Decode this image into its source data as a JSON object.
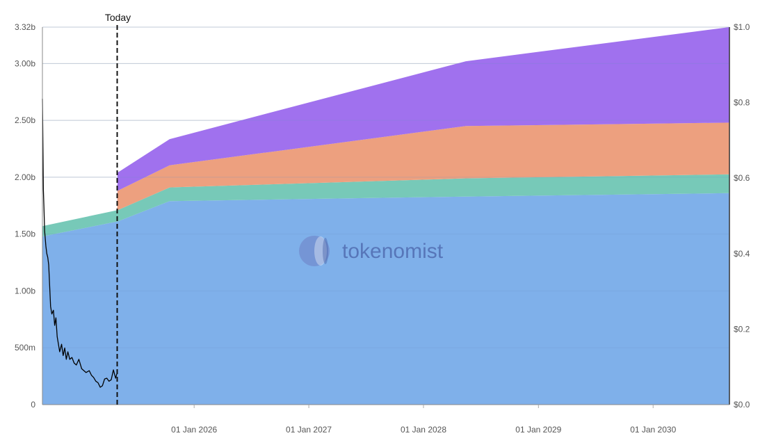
{
  "chart_data": {
    "type": "area",
    "stacked": true,
    "watermark": "tokenomist",
    "today_label": "Today",
    "today_date": "2025-05-01",
    "colors": {
      "blue": "#7fb0ea",
      "green": "#77c9b8",
      "orange": "#eda07f",
      "purple": "#a071ee",
      "price": "#000000"
    },
    "x_range": [
      "2024-09-05",
      "2030-09-01"
    ],
    "x_ticks": [
      {
        "date": "2026-01-01",
        "label": "01 Jan 2026"
      },
      {
        "date": "2027-01-01",
        "label": "01 Jan 2027"
      },
      {
        "date": "2028-01-01",
        "label": "01 Jan 2028"
      },
      {
        "date": "2029-01-01",
        "label": "01 Jan 2029"
      },
      {
        "date": "2030-01-01",
        "label": "01 Jan 2030"
      }
    ],
    "y_left": {
      "ylim": [
        0,
        3320000000
      ],
      "ticks": [
        {
          "value": 0,
          "label": "0"
        },
        {
          "value": 500000000,
          "label": "500m"
        },
        {
          "value": 1000000000,
          "label": "1.00b"
        },
        {
          "value": 1500000000,
          "label": "1.50b"
        },
        {
          "value": 2000000000,
          "label": "2.00b"
        },
        {
          "value": 2500000000,
          "label": "2.50b"
        },
        {
          "value": 3000000000,
          "label": "3.00b"
        },
        {
          "value": 3320000000,
          "label": "3.32b"
        }
      ]
    },
    "y_right": {
      "ylim": [
        0,
        1.0
      ],
      "ticks": [
        {
          "value": 0,
          "label": "$0.0"
        },
        {
          "value": 0.2,
          "label": "$0.2"
        },
        {
          "value": 0.4,
          "label": "$0.4"
        },
        {
          "value": 0.6,
          "label": "$0.6"
        },
        {
          "value": 0.8,
          "label": "$0.8"
        },
        {
          "value": 1.0,
          "label": "$1.0"
        }
      ]
    },
    "grid": true,
    "stack_x": [
      "2024-09-05",
      "2025-05-01",
      "2025-05-02",
      "2025-10-15",
      "2028-05-15",
      "2030-09-01"
    ],
    "series": [
      {
        "color_key": "blue",
        "values": [
          1480000000,
          1610000000,
          1610000000,
          1790000000,
          1830000000,
          1860000000
        ]
      },
      {
        "color_key": "green",
        "values": [
          90000000,
          100000000,
          100000000,
          120000000,
          160000000,
          165000000
        ]
      },
      {
        "color_key": "orange",
        "values": [
          0,
          0,
          170000000,
          195000000,
          460000000,
          455000000
        ]
      },
      {
        "color_key": "purple",
        "values": [
          0,
          0,
          160000000,
          230000000,
          570000000,
          840000000
        ]
      }
    ],
    "price_series": {
      "axis": "right",
      "x": [
        "2024-09-05",
        "2024-09-06",
        "2024-09-07",
        "2024-09-08",
        "2024-09-10",
        "2024-09-12",
        "2024-09-14",
        "2024-09-16",
        "2024-09-19",
        "2024-09-22",
        "2024-09-25",
        "2024-10-01",
        "2024-10-05",
        "2024-10-10",
        "2024-10-14",
        "2024-10-18",
        "2024-10-22",
        "2024-10-26",
        "2024-10-30",
        "2024-11-05",
        "2024-11-10",
        "2024-11-15",
        "2024-11-20",
        "2024-11-25",
        "2024-12-01",
        "2024-12-08",
        "2024-12-15",
        "2024-12-22",
        "2024-12-30",
        "2025-01-08",
        "2025-01-15",
        "2025-01-22",
        "2025-02-01",
        "2025-02-08",
        "2025-02-15",
        "2025-02-22",
        "2025-03-01",
        "2025-03-08",
        "2025-03-15",
        "2025-03-22",
        "2025-03-29",
        "2025-04-05",
        "2025-04-12",
        "2025-04-19",
        "2025-04-26",
        "2025-05-01"
      ],
      "values": [
        0.81,
        0.74,
        0.66,
        0.57,
        0.52,
        0.46,
        0.44,
        0.42,
        0.4,
        0.39,
        0.37,
        0.26,
        0.24,
        0.25,
        0.21,
        0.23,
        0.18,
        0.16,
        0.14,
        0.16,
        0.13,
        0.15,
        0.12,
        0.14,
        0.12,
        0.125,
        0.11,
        0.105,
        0.12,
        0.095,
        0.09,
        0.085,
        0.09,
        0.078,
        0.072,
        0.062,
        0.058,
        0.046,
        0.05,
        0.068,
        0.07,
        0.062,
        0.066,
        0.092,
        0.07,
        0.085
      ]
    }
  }
}
